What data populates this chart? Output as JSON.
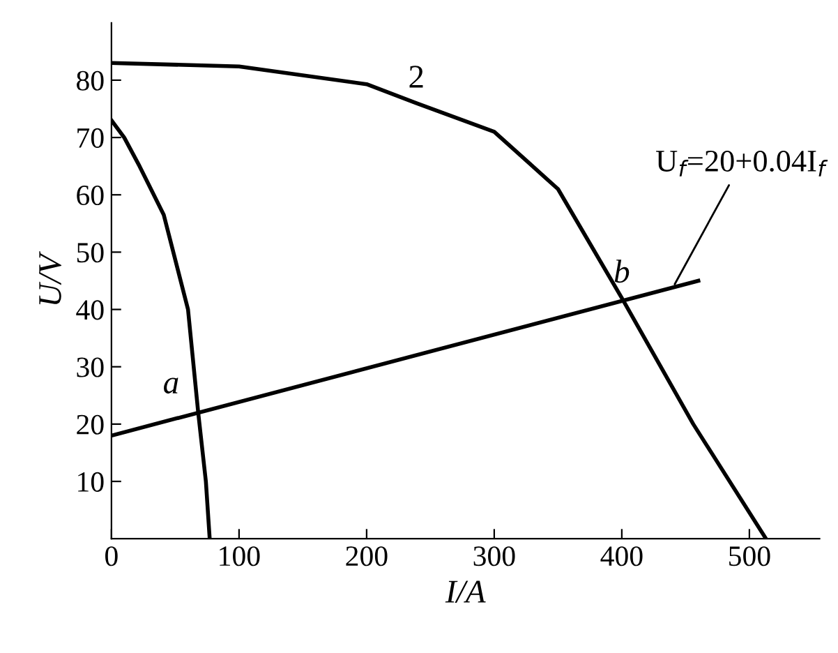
{
  "chart_data": {
    "type": "line",
    "xlabel": "I/A",
    "ylabel": "U/V",
    "series": [
      {
        "color": "#000000",
        "x": [
          0,
          10,
          22,
          41,
          60,
          68,
          74,
          77
        ],
        "values": [
          73,
          70,
          65,
          56.5,
          40,
          22,
          10,
          0
        ]
      },
      {
        "color": "#000000",
        "x": [
          0,
          100,
          200,
          239,
          300,
          350,
          400,
          456,
          513
        ],
        "values": [
          83,
          82.4,
          79.3,
          76,
          71,
          61,
          42,
          20,
          0
        ]
      },
      {
        "color": "#000000",
        "x": [
          0,
          460
        ],
        "values": [
          18,
          45
        ]
      }
    ],
    "xlim": [
      0,
      555
    ],
    "ylim": [
      0,
      90
    ],
    "xticks": [
      0,
      100,
      200,
      300,
      400,
      500
    ],
    "yticks": [
      10,
      20,
      30,
      40,
      50,
      60,
      70,
      80
    ],
    "grid": false,
    "legend": false,
    "marker": "none",
    "line_style": "solid",
    "annotations": [
      {
        "text": "2",
        "x": 239,
        "y": 76
      },
      {
        "text": "a",
        "x": 68,
        "y": 22
      },
      {
        "text": "b",
        "x": 400,
        "y": 42
      },
      {
        "text": "U$_{f}$=20+0.04I$_{f}$",
        "x": 440,
        "y": 43.8
      }
    ]
  }
}
